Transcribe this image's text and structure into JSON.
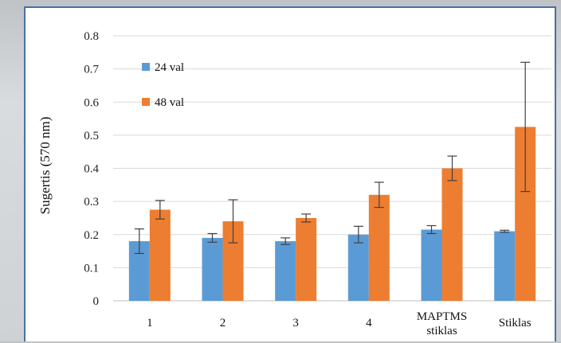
{
  "chart_data": {
    "type": "bar",
    "title": "",
    "xlabel": "",
    "ylabel": "Sugertis (570 nm)",
    "ylim": [
      0,
      0.8
    ],
    "yticks": [
      "0",
      "0.1",
      "0.2",
      "0.3",
      "0.4",
      "0.5",
      "0.6",
      "0.7",
      "0.8"
    ],
    "grid": true,
    "legend_position": "top-left",
    "categories": [
      [
        "1"
      ],
      [
        "2"
      ],
      [
        "3"
      ],
      [
        "4"
      ],
      [
        "MAPTMS",
        "stiklas"
      ],
      [
        "Stiklas"
      ]
    ],
    "series": [
      {
        "name": "24 val",
        "color": "#5b9bd5",
        "values": [
          0.18,
          0.19,
          0.18,
          0.2,
          0.215,
          0.21
        ],
        "errors": [
          0.037,
          0.013,
          0.01,
          0.025,
          0.012,
          0.003
        ]
      },
      {
        "name": "48 val",
        "color": "#ed7d31",
        "values": [
          0.275,
          0.24,
          0.25,
          0.32,
          0.4,
          0.525
        ],
        "errors": [
          0.028,
          0.065,
          0.012,
          0.038,
          0.037,
          0.195
        ]
      }
    ]
  }
}
